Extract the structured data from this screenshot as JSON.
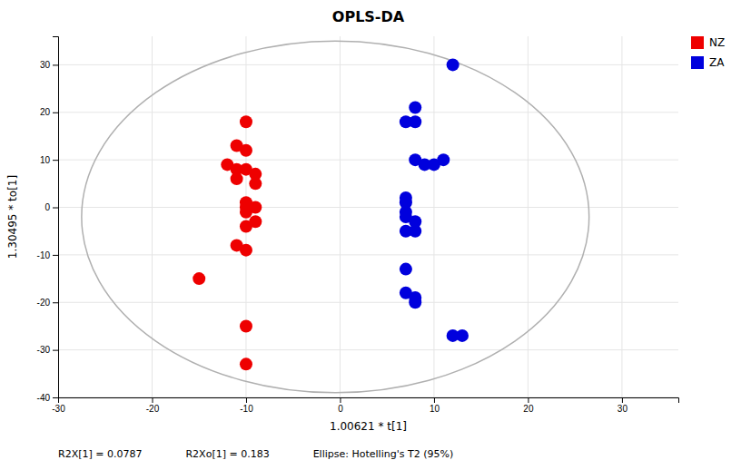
{
  "chart_data": {
    "type": "scatter",
    "title": "OPLS-DA",
    "xlabel": "1.00621 * t[1]",
    "ylabel": "1.30495 * to[1]",
    "xlim": [
      -30,
      36
    ],
    "ylim": [
      -40,
      36
    ],
    "xticks": [
      -30,
      -20,
      -10,
      0,
      10,
      20,
      30
    ],
    "yticks": [
      -40,
      -30,
      -20,
      -10,
      0,
      10,
      20,
      30
    ],
    "grid": true,
    "legend": "right",
    "annotations": [
      "R2X[1] = 0.0787",
      "R2Xo[1] = 0.183",
      "Ellipse: Hotelling's T2 (95%)"
    ],
    "ellipse": {
      "cx": -0.5,
      "cy": -2.0,
      "width": 54,
      "height": 74,
      "color": "#b0b0b0"
    },
    "series": [
      {
        "name": "NZ",
        "color": "#ee0000",
        "x": [
          -10,
          -11,
          -10,
          -12,
          -11,
          -10,
          -9,
          -11,
          -9,
          -10,
          -10,
          -9,
          -10,
          -9,
          -10,
          -11,
          -10,
          -15,
          -10,
          -10
        ],
        "values": [
          18,
          13,
          12,
          9,
          8,
          8,
          7,
          6,
          5,
          1,
          0,
          0,
          -1,
          -3,
          -4,
          -8,
          -9,
          -15,
          -25,
          -33
        ]
      },
      {
        "name": "ZA",
        "color": "#0000dd",
        "x": [
          12,
          8,
          7,
          8,
          8,
          9,
          10,
          11,
          7,
          7,
          7,
          7,
          8,
          7,
          8,
          7,
          7,
          8,
          8,
          12,
          13
        ],
        "values": [
          30,
          21,
          18,
          18,
          10,
          9,
          9,
          10,
          2,
          1,
          -1,
          -2,
          -3,
          -5,
          -5,
          -13,
          -18,
          -19,
          -20,
          -27,
          -27
        ]
      }
    ]
  }
}
